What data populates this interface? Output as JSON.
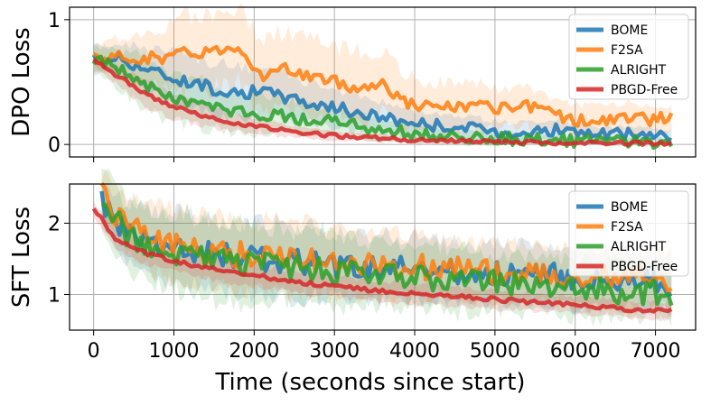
{
  "chart_data": [
    {
      "type": "line",
      "ylabel": "DPO Loss",
      "xlabel": "",
      "xlim": [
        -300,
        7500
      ],
      "ylim": [
        -0.1,
        1.1
      ],
      "x_ticks": [
        0,
        1000,
        2000,
        3000,
        4000,
        5000,
        6000,
        7000
      ],
      "y_ticks": [
        0,
        1
      ],
      "grid": true,
      "legend_position": "top-right",
      "series": [
        {
          "name": "BOME",
          "color": "#1f77b4",
          "x": [
            0,
            300,
            600,
            900,
            1200,
            1500,
            1800,
            2100,
            2400,
            2700,
            3000,
            3300,
            3600,
            3900,
            4200,
            4500,
            4800,
            5100,
            5400,
            5700,
            6000,
            6300,
            6600,
            6900,
            7200
          ],
          "y": [
            0.68,
            0.7,
            0.62,
            0.55,
            0.5,
            0.45,
            0.42,
            0.42,
            0.38,
            0.33,
            0.3,
            0.25,
            0.22,
            0.18,
            0.16,
            0.14,
            0.12,
            0.1,
            0.1,
            0.12,
            0.1,
            0.08,
            0.08,
            0.08,
            0.06
          ],
          "band": [
            0.1,
            0.12,
            0.15,
            0.2,
            0.2,
            0.2,
            0.2,
            0.18,
            0.18,
            0.16,
            0.15,
            0.14,
            0.12,
            0.11,
            0.1,
            0.1,
            0.09,
            0.08,
            0.08,
            0.08,
            0.07,
            0.06,
            0.06,
            0.05,
            0.05
          ]
        },
        {
          "name": "F2SA",
          "color": "#ff7f0e",
          "x": [
            0,
            300,
            600,
            900,
            1200,
            1500,
            1800,
            2100,
            2400,
            2700,
            3000,
            3300,
            3600,
            3900,
            4200,
            4500,
            4800,
            5100,
            5400,
            5700,
            6000,
            6300,
            6600,
            6900,
            7200
          ],
          "y": [
            0.68,
            0.7,
            0.7,
            0.7,
            0.74,
            0.75,
            0.8,
            0.55,
            0.6,
            0.55,
            0.5,
            0.45,
            0.5,
            0.33,
            0.3,
            0.3,
            0.3,
            0.28,
            0.3,
            0.25,
            0.2,
            0.18,
            0.22,
            0.2,
            0.22
          ],
          "band": [
            0.1,
            0.15,
            0.2,
            0.25,
            0.3,
            0.3,
            0.3,
            0.3,
            0.3,
            0.3,
            0.28,
            0.28,
            0.25,
            0.22,
            0.2,
            0.2,
            0.18,
            0.16,
            0.15,
            0.14,
            0.12,
            0.12,
            0.12,
            0.12,
            0.1
          ]
        },
        {
          "name": "ALRIGHT",
          "color": "#2ca02c",
          "x": [
            0,
            300,
            600,
            900,
            1200,
            1500,
            1800,
            2100,
            2400,
            2700,
            3000,
            3300,
            3600,
            3900,
            4200,
            4500,
            4800,
            5100,
            5400,
            5700,
            6000,
            6300,
            6600,
            6900,
            7200
          ],
          "y": [
            0.68,
            0.62,
            0.5,
            0.38,
            0.35,
            0.3,
            0.25,
            0.25,
            0.22,
            0.2,
            0.18,
            0.15,
            0.12,
            0.1,
            0.08,
            0.06,
            0.05,
            0.05,
            0.04,
            0.04,
            0.03,
            0.03,
            0.02,
            0.02,
            0.02
          ],
          "band": [
            0.1,
            0.15,
            0.2,
            0.2,
            0.2,
            0.18,
            0.16,
            0.15,
            0.14,
            0.12,
            0.11,
            0.1,
            0.09,
            0.08,
            0.07,
            0.06,
            0.05,
            0.05,
            0.04,
            0.04,
            0.03,
            0.03,
            0.03,
            0.03,
            0.03
          ]
        },
        {
          "name": "PBGD-Free",
          "color": "#d62728",
          "x": [
            0,
            300,
            600,
            900,
            1200,
            1500,
            1800,
            2100,
            2400,
            2700,
            3000,
            3300,
            3600,
            3900,
            4200,
            4500,
            4800,
            5100,
            5400,
            5700,
            6000,
            6300,
            6600,
            6900,
            7200
          ],
          "y": [
            0.68,
            0.55,
            0.42,
            0.33,
            0.26,
            0.21,
            0.17,
            0.14,
            0.11,
            0.09,
            0.07,
            0.06,
            0.05,
            0.04,
            0.03,
            0.03,
            0.02,
            0.02,
            0.02,
            0.01,
            0.01,
            0.01,
            0.01,
            0.01,
            0.01
          ],
          "band": [
            0.05,
            0.08,
            0.1,
            0.1,
            0.09,
            0.08,
            0.07,
            0.06,
            0.05,
            0.04,
            0.04,
            0.03,
            0.03,
            0.02,
            0.02,
            0.02,
            0.02,
            0.01,
            0.01,
            0.01,
            0.01,
            0.01,
            0.01,
            0.01,
            0.01
          ]
        }
      ]
    },
    {
      "type": "line",
      "ylabel": "SFT Loss",
      "xlabel": "Time (seconds since start)",
      "xlim": [
        -300,
        7500
      ],
      "ylim": [
        0.5,
        2.55
      ],
      "x_ticks": [
        0,
        1000,
        2000,
        3000,
        4000,
        5000,
        6000,
        7000
      ],
      "y_ticks": [
        1,
        2
      ],
      "grid": true,
      "legend_position": "top-right",
      "series": [
        {
          "name": "BOME",
          "color": "#1f77b4",
          "x": [
            100,
            400,
            700,
            1000,
            1300,
            1600,
            1900,
            2200,
            2500,
            2800,
            3100,
            3400,
            3700,
            4000,
            4300,
            4600,
            4900,
            5200,
            5500,
            5800,
            6100,
            6400,
            6700,
            7000,
            7200
          ],
          "y": [
            2.3,
            1.9,
            1.75,
            1.65,
            1.6,
            1.55,
            1.5,
            1.5,
            1.45,
            1.45,
            1.4,
            1.4,
            1.38,
            1.35,
            1.35,
            1.32,
            1.3,
            1.3,
            1.28,
            1.25,
            1.22,
            1.2,
            1.2,
            1.18,
            1.15
          ],
          "band": [
            0.3,
            0.4,
            0.45,
            0.5,
            0.5,
            0.5,
            0.5,
            0.5,
            0.5,
            0.5,
            0.45,
            0.45,
            0.45,
            0.45,
            0.4,
            0.4,
            0.4,
            0.4,
            0.4,
            0.4,
            0.4,
            0.4,
            0.4,
            0.4,
            0.4
          ]
        },
        {
          "name": "F2SA",
          "color": "#ff7f0e",
          "x": [
            100,
            400,
            700,
            1000,
            1300,
            1600,
            1900,
            2200,
            2500,
            2800,
            3100,
            3400,
            3700,
            4000,
            4300,
            4600,
            4900,
            5200,
            5500,
            5800,
            6100,
            6400,
            6700,
            7000,
            7200
          ],
          "y": [
            2.4,
            1.95,
            1.8,
            1.7,
            1.65,
            1.6,
            1.55,
            1.55,
            1.5,
            1.5,
            1.45,
            1.42,
            1.4,
            1.38,
            1.38,
            1.35,
            1.32,
            1.32,
            1.3,
            1.28,
            1.25,
            1.25,
            1.22,
            1.22,
            1.2
          ],
          "band": [
            0.3,
            0.4,
            0.45,
            0.5,
            0.5,
            0.5,
            0.5,
            0.5,
            0.5,
            0.5,
            0.45,
            0.45,
            0.45,
            0.45,
            0.4,
            0.4,
            0.4,
            0.4,
            0.4,
            0.4,
            0.4,
            0.4,
            0.4,
            0.4,
            0.4
          ]
        },
        {
          "name": "ALRIGHT",
          "color": "#2ca02c",
          "x": [
            100,
            400,
            700,
            1000,
            1300,
            1600,
            1900,
            2200,
            2500,
            2800,
            3100,
            3400,
            3700,
            4000,
            4300,
            4600,
            4900,
            5200,
            5500,
            5800,
            6100,
            6400,
            6700,
            7000,
            7200
          ],
          "y": [
            2.4,
            1.85,
            1.7,
            1.6,
            1.55,
            1.45,
            1.45,
            1.4,
            1.38,
            1.35,
            1.33,
            1.3,
            1.28,
            1.25,
            1.22,
            1.2,
            1.18,
            1.15,
            1.12,
            1.1,
            1.08,
            1.05,
            1.05,
            1.03,
            1.0
          ],
          "band": [
            0.4,
            0.5,
            0.5,
            0.55,
            0.55,
            0.55,
            0.55,
            0.5,
            0.5,
            0.5,
            0.5,
            0.45,
            0.45,
            0.45,
            0.45,
            0.45,
            0.4,
            0.4,
            0.4,
            0.4,
            0.4,
            0.4,
            0.4,
            0.4,
            0.4
          ]
        },
        {
          "name": "PBGD-Free",
          "color": "#d62728",
          "x": [
            0,
            300,
            600,
            900,
            1200,
            1500,
            1800,
            2100,
            2400,
            2700,
            3000,
            3300,
            3600,
            3900,
            4200,
            4500,
            4800,
            5100,
            5400,
            5700,
            6000,
            6300,
            6600,
            6900,
            7200
          ],
          "y": [
            2.2,
            1.75,
            1.6,
            1.5,
            1.42,
            1.35,
            1.3,
            1.25,
            1.2,
            1.15,
            1.12,
            1.08,
            1.05,
            1.02,
            1.0,
            0.97,
            0.95,
            0.92,
            0.9,
            0.88,
            0.85,
            0.83,
            0.8,
            0.78,
            0.77
          ],
          "band": [
            0.1,
            0.15,
            0.15,
            0.15,
            0.15,
            0.15,
            0.15,
            0.15,
            0.15,
            0.15,
            0.15,
            0.15,
            0.14,
            0.14,
            0.14,
            0.14,
            0.13,
            0.13,
            0.13,
            0.12,
            0.12,
            0.12,
            0.12,
            0.12,
            0.12
          ]
        }
      ]
    }
  ]
}
